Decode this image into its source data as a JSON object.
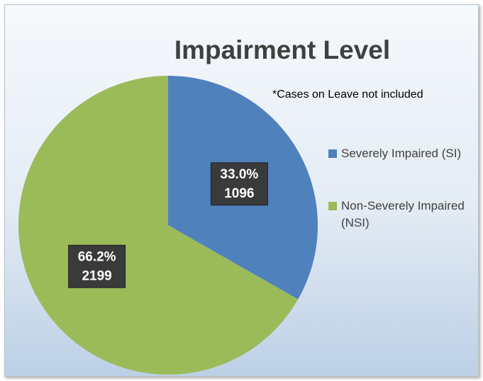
{
  "chart_data": {
    "type": "pie",
    "title": "Impairment Level",
    "annotation": "*Cases on Leave not included",
    "categories": [
      "Severely Impaired (SI)",
      "Non-Severely Impaired (NSI)"
    ],
    "values": [
      1096,
      2199
    ],
    "percent_labels": [
      "33.0%",
      "66.2%"
    ],
    "colors": [
      "#4f81bd",
      "#9bbb59"
    ]
  }
}
